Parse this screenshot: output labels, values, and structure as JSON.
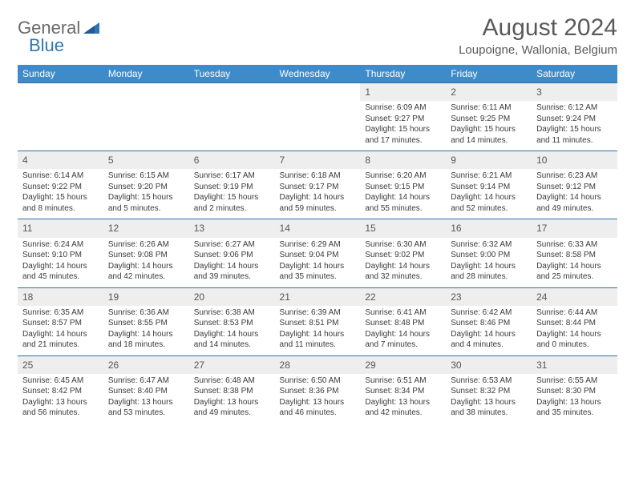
{
  "logo": {
    "text1": "General",
    "text2": "Blue"
  },
  "title": "August 2024",
  "subtitle": "Loupoigne, Wallonia, Belgium",
  "colors": {
    "header_bg": "#3f8bca",
    "header_text": "#ffffff",
    "daynum_bg": "#eeeeee",
    "row_border": "#2f6fa8",
    "logo_gray": "#6a6a6a",
    "logo_blue": "#2f76b8"
  },
  "fonts": {
    "title_size": 30,
    "subtitle_size": 15,
    "header_size": 12,
    "daynum_size": 12,
    "cell_size": 10
  },
  "day_headers": [
    "Sunday",
    "Monday",
    "Tuesday",
    "Wednesday",
    "Thursday",
    "Friday",
    "Saturday"
  ],
  "weeks": [
    [
      null,
      null,
      null,
      null,
      {
        "n": "1",
        "sr": "6:09 AM",
        "ss": "9:27 PM",
        "dl": "15 hours and 17 minutes."
      },
      {
        "n": "2",
        "sr": "6:11 AM",
        "ss": "9:25 PM",
        "dl": "15 hours and 14 minutes."
      },
      {
        "n": "3",
        "sr": "6:12 AM",
        "ss": "9:24 PM",
        "dl": "15 hours and 11 minutes."
      }
    ],
    [
      {
        "n": "4",
        "sr": "6:14 AM",
        "ss": "9:22 PM",
        "dl": "15 hours and 8 minutes."
      },
      {
        "n": "5",
        "sr": "6:15 AM",
        "ss": "9:20 PM",
        "dl": "15 hours and 5 minutes."
      },
      {
        "n": "6",
        "sr": "6:17 AM",
        "ss": "9:19 PM",
        "dl": "15 hours and 2 minutes."
      },
      {
        "n": "7",
        "sr": "6:18 AM",
        "ss": "9:17 PM",
        "dl": "14 hours and 59 minutes."
      },
      {
        "n": "8",
        "sr": "6:20 AM",
        "ss": "9:15 PM",
        "dl": "14 hours and 55 minutes."
      },
      {
        "n": "9",
        "sr": "6:21 AM",
        "ss": "9:14 PM",
        "dl": "14 hours and 52 minutes."
      },
      {
        "n": "10",
        "sr": "6:23 AM",
        "ss": "9:12 PM",
        "dl": "14 hours and 49 minutes."
      }
    ],
    [
      {
        "n": "11",
        "sr": "6:24 AM",
        "ss": "9:10 PM",
        "dl": "14 hours and 45 minutes."
      },
      {
        "n": "12",
        "sr": "6:26 AM",
        "ss": "9:08 PM",
        "dl": "14 hours and 42 minutes."
      },
      {
        "n": "13",
        "sr": "6:27 AM",
        "ss": "9:06 PM",
        "dl": "14 hours and 39 minutes."
      },
      {
        "n": "14",
        "sr": "6:29 AM",
        "ss": "9:04 PM",
        "dl": "14 hours and 35 minutes."
      },
      {
        "n": "15",
        "sr": "6:30 AM",
        "ss": "9:02 PM",
        "dl": "14 hours and 32 minutes."
      },
      {
        "n": "16",
        "sr": "6:32 AM",
        "ss": "9:00 PM",
        "dl": "14 hours and 28 minutes."
      },
      {
        "n": "17",
        "sr": "6:33 AM",
        "ss": "8:58 PM",
        "dl": "14 hours and 25 minutes."
      }
    ],
    [
      {
        "n": "18",
        "sr": "6:35 AM",
        "ss": "8:57 PM",
        "dl": "14 hours and 21 minutes."
      },
      {
        "n": "19",
        "sr": "6:36 AM",
        "ss": "8:55 PM",
        "dl": "14 hours and 18 minutes."
      },
      {
        "n": "20",
        "sr": "6:38 AM",
        "ss": "8:53 PM",
        "dl": "14 hours and 14 minutes."
      },
      {
        "n": "21",
        "sr": "6:39 AM",
        "ss": "8:51 PM",
        "dl": "14 hours and 11 minutes."
      },
      {
        "n": "22",
        "sr": "6:41 AM",
        "ss": "8:48 PM",
        "dl": "14 hours and 7 minutes."
      },
      {
        "n": "23",
        "sr": "6:42 AM",
        "ss": "8:46 PM",
        "dl": "14 hours and 4 minutes."
      },
      {
        "n": "24",
        "sr": "6:44 AM",
        "ss": "8:44 PM",
        "dl": "14 hours and 0 minutes."
      }
    ],
    [
      {
        "n": "25",
        "sr": "6:45 AM",
        "ss": "8:42 PM",
        "dl": "13 hours and 56 minutes."
      },
      {
        "n": "26",
        "sr": "6:47 AM",
        "ss": "8:40 PM",
        "dl": "13 hours and 53 minutes."
      },
      {
        "n": "27",
        "sr": "6:48 AM",
        "ss": "8:38 PM",
        "dl": "13 hours and 49 minutes."
      },
      {
        "n": "28",
        "sr": "6:50 AM",
        "ss": "8:36 PM",
        "dl": "13 hours and 46 minutes."
      },
      {
        "n": "29",
        "sr": "6:51 AM",
        "ss": "8:34 PM",
        "dl": "13 hours and 42 minutes."
      },
      {
        "n": "30",
        "sr": "6:53 AM",
        "ss": "8:32 PM",
        "dl": "13 hours and 38 minutes."
      },
      {
        "n": "31",
        "sr": "6:55 AM",
        "ss": "8:30 PM",
        "dl": "13 hours and 35 minutes."
      }
    ]
  ],
  "labels": {
    "sunrise": "Sunrise:",
    "sunset": "Sunset:",
    "daylight": "Daylight:"
  }
}
